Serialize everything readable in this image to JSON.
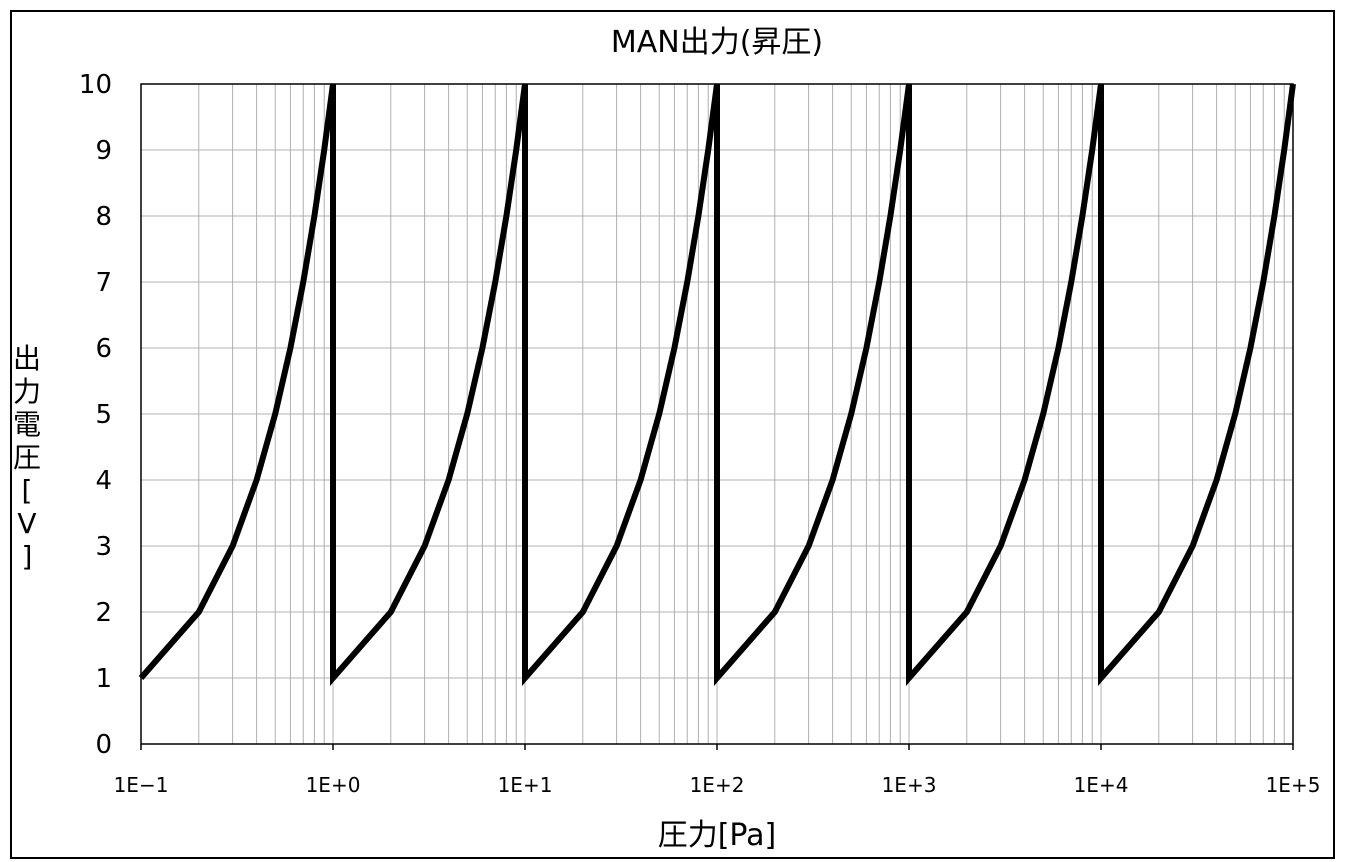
{
  "chart_data": {
    "type": "line",
    "title": "MAN出力(昇圧)",
    "xlabel": "圧力[Pa]",
    "ylabel_chars": [
      "出",
      "力",
      "電",
      "圧",
      "[",
      "V",
      "]"
    ],
    "x_scale": "log",
    "xlim": [
      0.1,
      100000
    ],
    "ylim": [
      0,
      10
    ],
    "grid": true,
    "x_tick_labels": [
      "1E−1",
      "1E+0",
      "1E+1",
      "1E+2",
      "1E+3",
      "1E+4",
      "1E+5"
    ],
    "y_tick_labels": [
      "0",
      "1",
      "2",
      "3",
      "4",
      "5",
      "6",
      "7",
      "8",
      "9",
      "10"
    ],
    "colors": {
      "line": "#000000",
      "grid": "#b0b0b0",
      "axis": "#000000"
    },
    "series": [
      {
        "x": [
          0.1,
          0.2,
          0.3,
          0.4,
          0.5,
          0.6,
          0.7,
          0.8,
          0.9,
          1,
          1,
          1,
          2,
          3,
          4,
          5,
          6,
          7,
          8,
          9,
          10,
          10,
          10,
          20,
          30,
          40,
          50,
          60,
          70,
          80,
          90,
          100,
          100,
          100,
          200,
          300,
          400,
          500,
          600,
          700,
          800,
          900,
          1000,
          1000,
          1000,
          2000,
          3000,
          4000,
          5000,
          6000,
          7000,
          8000,
          9000,
          10000,
          10000,
          10000,
          20000,
          30000,
          40000,
          50000,
          60000,
          70000,
          80000,
          90000,
          100000
        ],
        "y": [
          1,
          2,
          3,
          4,
          5,
          6,
          7,
          8,
          9,
          10,
          10,
          1,
          2,
          3,
          4,
          5,
          6,
          7,
          8,
          9,
          10,
          10,
          1,
          2,
          3,
          4,
          5,
          6,
          7,
          8,
          9,
          10,
          10,
          1,
          2,
          3,
          4,
          5,
          6,
          7,
          8,
          9,
          10,
          10,
          1,
          2,
          3,
          4,
          5,
          6,
          7,
          8,
          9,
          10,
          10,
          1,
          2,
          3,
          4,
          5,
          6,
          7,
          8,
          9,
          10
        ]
      }
    ]
  }
}
